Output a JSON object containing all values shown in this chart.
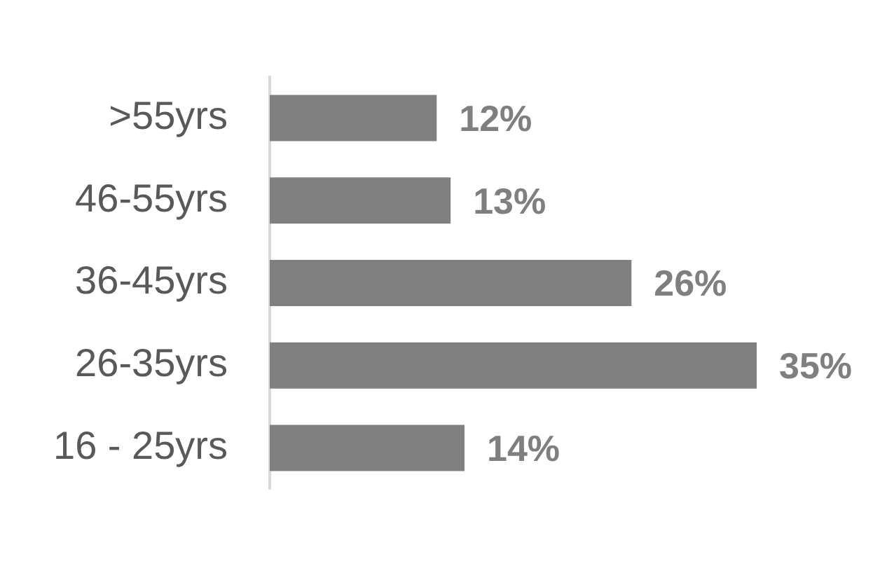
{
  "chart_data": {
    "type": "bar",
    "orientation": "horizontal",
    "categories": [
      ">55yrs",
      "46-55yrs",
      "36-45yrs",
      "26-35yrs",
      "16 - 25yrs"
    ],
    "values": [
      12,
      13,
      26,
      35,
      14
    ],
    "color": "#808080",
    "value_labels": [
      "12%",
      "13%",
      "26%",
      "35%",
      "14%"
    ],
    "legend": false,
    "tick_labels": "y"
  }
}
